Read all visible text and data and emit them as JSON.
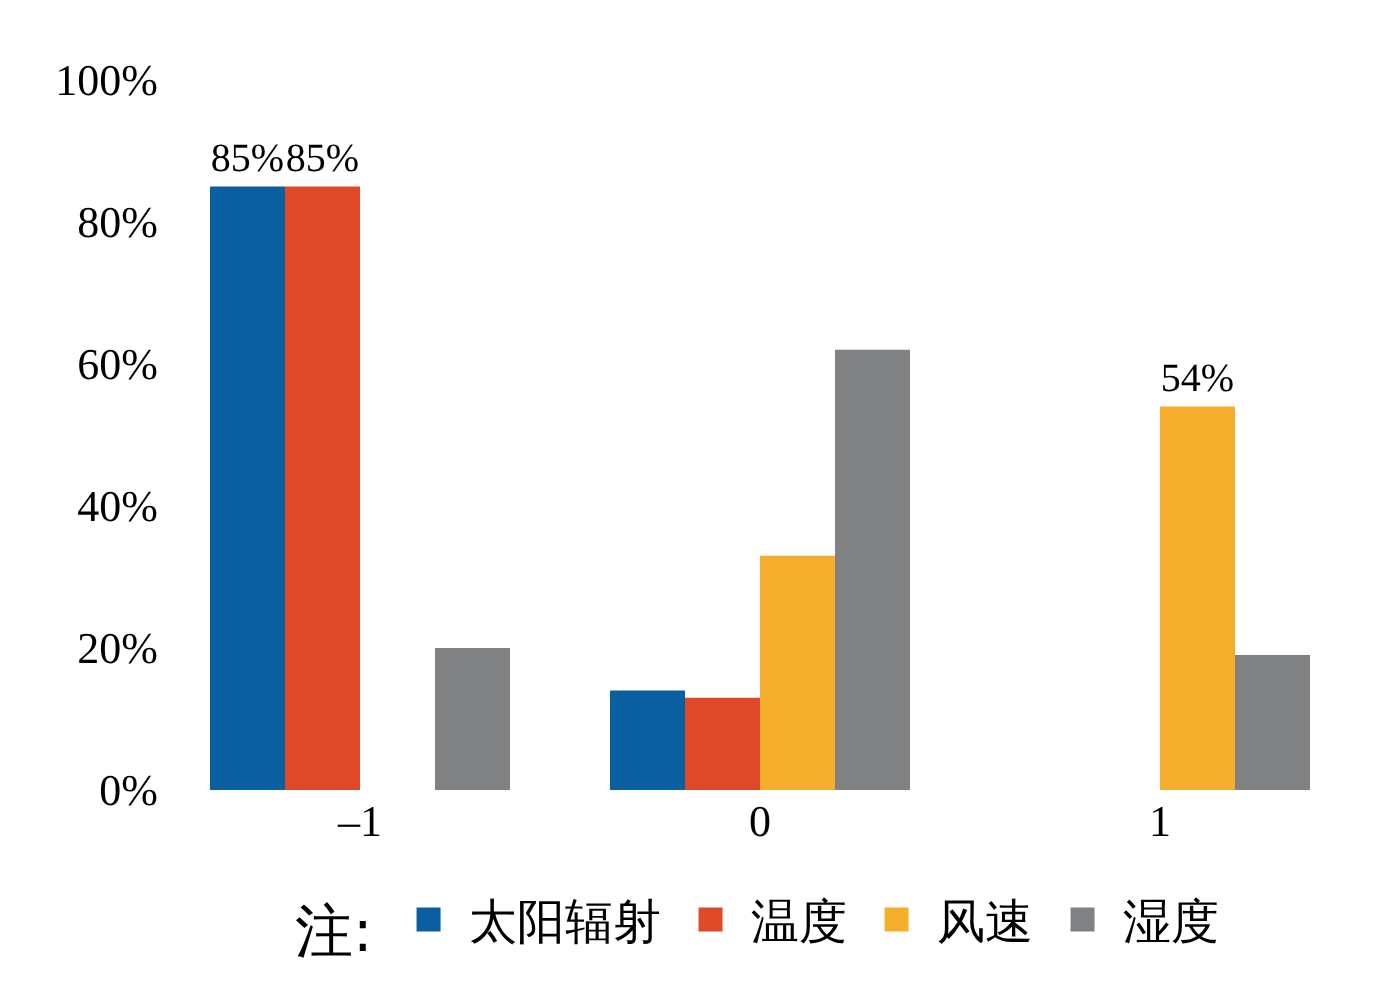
{
  "chart_data": {
    "type": "bar",
    "categories": [
      "–1",
      "0",
      "1"
    ],
    "series": [
      {
        "name": "太阳辐射",
        "color": "#0a5fa0",
        "values": [
          85,
          14,
          0
        ],
        "value_labels": [
          "85%",
          null,
          null
        ]
      },
      {
        "name": "温度",
        "color": "#e0482a",
        "values": [
          85,
          13,
          0
        ],
        "value_labels": [
          "85%",
          null,
          null
        ]
      },
      {
        "name": "风速",
        "color": "#f5ad2c",
        "values": [
          0,
          33,
          54
        ],
        "value_labels": [
          null,
          null,
          "54%"
        ]
      },
      {
        "name": "湿度",
        "color": "#7f8182",
        "values": [
          20,
          62,
          19
        ],
        "value_labels": [
          null,
          null,
          null
        ]
      }
    ],
    "legend_title": "注:",
    "ylim": [
      0,
      100
    ],
    "yticks": [
      {
        "value": 0,
        "label": "0%"
      },
      {
        "value": 20,
        "label": "20%"
      },
      {
        "value": 40,
        "label": "40%"
      },
      {
        "value": 60,
        "label": "60%"
      },
      {
        "value": 80,
        "label": "80%"
      },
      {
        "value": 100,
        "label": "100%"
      }
    ],
    "legend": "bottom"
  }
}
